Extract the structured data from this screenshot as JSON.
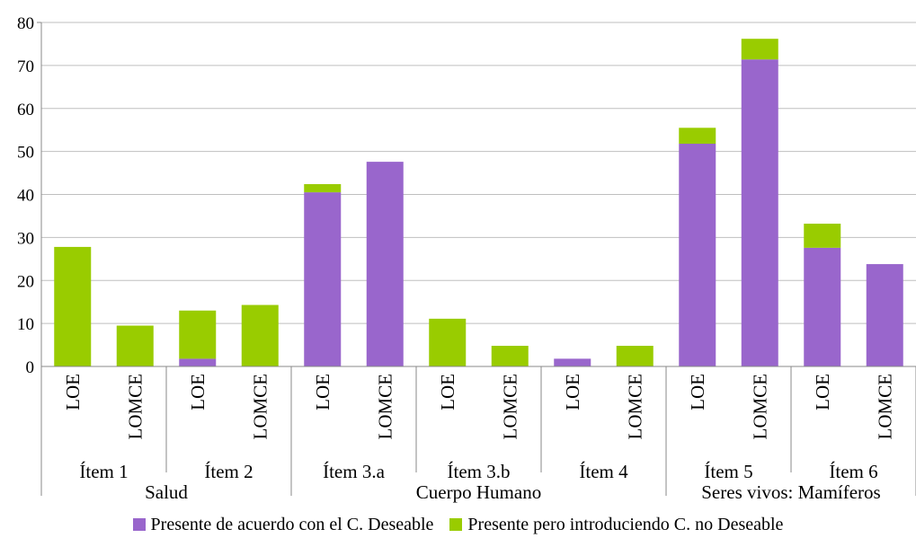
{
  "chart_data": {
    "type": "bar",
    "stacked": true,
    "categories": [
      "LOE",
      "LOMCE",
      "LOE",
      "LOMCE",
      "LOE",
      "LOMCE",
      "LOE",
      "LOMCE",
      "LOE",
      "LOMCE",
      "LOE",
      "LOMCE",
      "LOE",
      "LOMCE"
    ],
    "items": [
      {
        "label": "Ítem 1"
      },
      {
        "label": "Ítem 2"
      },
      {
        "label": "Ítem 3.a"
      },
      {
        "label": "Ítem 3.b"
      },
      {
        "label": "Ítem 4"
      },
      {
        "label": "Ítem 5"
      },
      {
        "label": "Ítem 6"
      }
    ],
    "groups": [
      {
        "label": "Salud",
        "items": 2
      },
      {
        "label": "Cuerpo Humano",
        "items": 3
      },
      {
        "label": "Seres vivos: Mamíferos",
        "items": 2
      }
    ],
    "series": [
      {
        "name": "Presente de acuerdo con el C. Deseable",
        "color": "#9966CC",
        "values": [
          0,
          0,
          1.8,
          0,
          40.5,
          47.6,
          0,
          0,
          1.8,
          0,
          51.8,
          71.4,
          27.6,
          23.8
        ]
      },
      {
        "name": "Presente pero introduciendo C. no Deseable",
        "color": "#99CC00",
        "values": [
          27.8,
          9.5,
          11.2,
          14.3,
          1.9,
          0,
          11.1,
          4.8,
          0,
          4.8,
          3.7,
          4.8,
          5.6,
          0
        ]
      }
    ],
    "yticks": [
      0,
      10,
      20,
      30,
      40,
      50,
      60,
      70,
      80
    ],
    "ylim": [
      0,
      80
    ],
    "grid": true,
    "legend_position": "bottom"
  }
}
